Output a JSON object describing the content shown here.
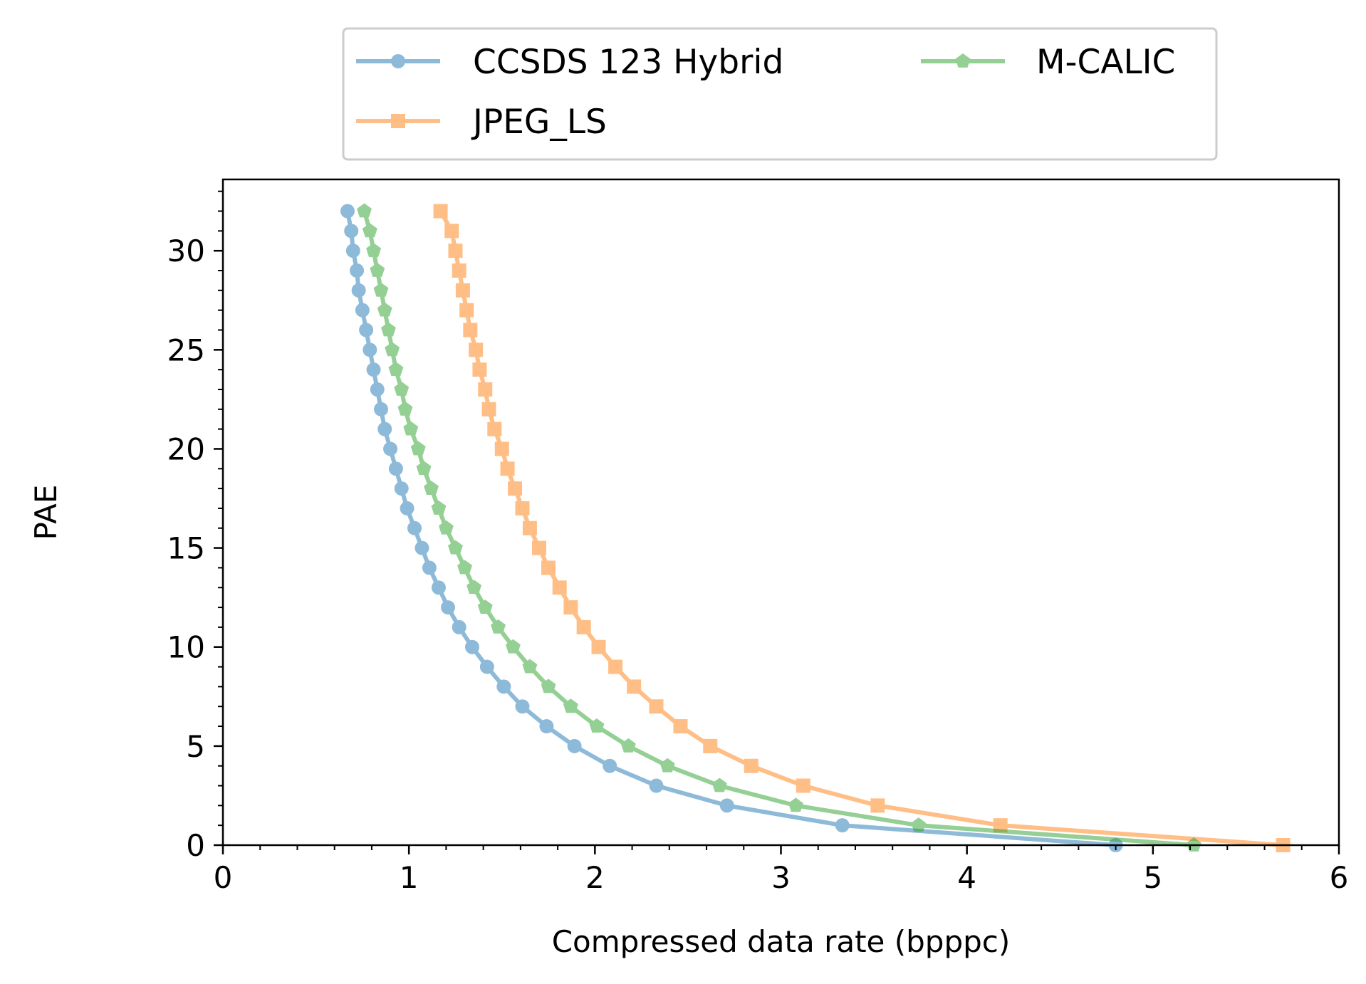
{
  "chart_data": {
    "type": "line",
    "xlabel": "Compressed data rate (bpppc)",
    "ylabel": "PAE",
    "xlim": [
      0,
      6
    ],
    "ylim": [
      0,
      33.6
    ],
    "xticks": [
      0,
      1,
      2,
      3,
      4,
      5,
      6
    ],
    "yticks": [
      0,
      5,
      10,
      15,
      20,
      25,
      30
    ],
    "grid": false,
    "legend": {
      "placement": "top-center-outside",
      "columns": 2
    },
    "series": [
      {
        "name": "CCSDS 123 Hybrid",
        "color": "#1f77b4",
        "marker": "circle",
        "x": [
          4.8,
          3.33,
          2.71,
          2.33,
          2.08,
          1.89,
          1.74,
          1.61,
          1.51,
          1.42,
          1.34,
          1.27,
          1.21,
          1.16,
          1.11,
          1.07,
          1.03,
          0.99,
          0.96,
          0.93,
          0.9,
          0.87,
          0.85,
          0.83,
          0.81,
          0.79,
          0.77,
          0.75,
          0.73,
          0.72,
          0.7,
          0.69,
          0.67
        ],
        "y": [
          0,
          1,
          2,
          3,
          4,
          5,
          6,
          7,
          8,
          9,
          10,
          11,
          12,
          13,
          14,
          15,
          16,
          17,
          18,
          19,
          20,
          21,
          22,
          23,
          24,
          25,
          26,
          27,
          28,
          29,
          30,
          31,
          32
        ]
      },
      {
        "name": "JPEG_LS",
        "color": "#ff7f0e",
        "marker": "square",
        "x": [
          5.7,
          4.18,
          3.52,
          3.12,
          2.84,
          2.62,
          2.46,
          2.33,
          2.21,
          2.11,
          2.02,
          1.94,
          1.87,
          1.81,
          1.75,
          1.7,
          1.65,
          1.61,
          1.57,
          1.53,
          1.5,
          1.46,
          1.43,
          1.41,
          1.38,
          1.36,
          1.33,
          1.31,
          1.29,
          1.27,
          1.25,
          1.23,
          1.17
        ],
        "y": [
          0,
          1,
          2,
          3,
          4,
          5,
          6,
          7,
          8,
          9,
          10,
          11,
          12,
          13,
          14,
          15,
          16,
          17,
          18,
          19,
          20,
          21,
          22,
          23,
          24,
          25,
          26,
          27,
          28,
          29,
          30,
          31,
          32
        ]
      },
      {
        "name": "M-CALIC",
        "color": "#2ca02c",
        "marker": "pentagon",
        "x": [
          5.22,
          3.74,
          3.08,
          2.67,
          2.39,
          2.18,
          2.01,
          1.87,
          1.75,
          1.65,
          1.56,
          1.48,
          1.41,
          1.35,
          1.3,
          1.25,
          1.2,
          1.16,
          1.12,
          1.08,
          1.05,
          1.01,
          0.98,
          0.96,
          0.93,
          0.91,
          0.89,
          0.87,
          0.85,
          0.83,
          0.81,
          0.79,
          0.76
        ],
        "y": [
          0,
          1,
          2,
          3,
          4,
          5,
          6,
          7,
          8,
          9,
          10,
          11,
          12,
          13,
          14,
          15,
          16,
          17,
          18,
          19,
          20,
          21,
          22,
          23,
          24,
          25,
          26,
          27,
          28,
          29,
          30,
          31,
          32
        ]
      }
    ]
  }
}
